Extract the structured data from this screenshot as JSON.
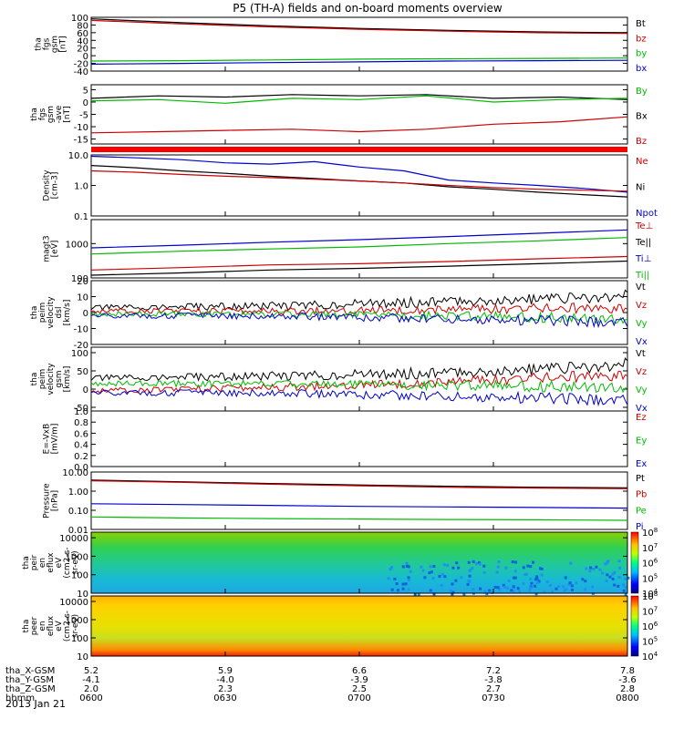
{
  "title": "P5 (TH-A) fields and on-board moments overview",
  "chart_data": {
    "type": "line",
    "title": "P5 (TH-A) fields and on-board moments overview",
    "date_label": "2013 Jan 21",
    "panels": [
      {
        "ylabel": [
          "tha",
          "fgs",
          "gsm",
          "[nT]"
        ],
        "ylim": [
          -40,
          100
        ],
        "yticks": [
          -40,
          -20,
          0,
          20,
          40,
          60,
          80,
          100
        ],
        "ytick_labels": [
          "-40",
          "-20",
          "0",
          "20",
          "40",
          "60",
          "80",
          "100"
        ],
        "legend": [
          {
            "label": "Bt",
            "color": "#000000"
          },
          {
            "label": "bz",
            "color": "#cc0000"
          },
          {
            "label": "by",
            "color": "#00bb00"
          },
          {
            "label": "bx",
            "color": "#0000cc"
          }
        ],
        "series": [
          {
            "name": "Bt",
            "color": "#000000",
            "x": [
              360,
              380,
              400,
              420,
              440,
              460,
              480
            ],
            "values": [
              96,
              86,
              78,
              71,
              66,
              62,
              60
            ]
          },
          {
            "name": "bz",
            "color": "#cc0000",
            "x": [
              360,
              380,
              400,
              420,
              440,
              460,
              480
            ],
            "values": [
              92,
              83,
              75,
              69,
              64,
              60,
              58
            ]
          },
          {
            "name": "by",
            "color": "#00bb00",
            "x": [
              360,
              380,
              400,
              420,
              440,
              460,
              480
            ],
            "values": [
              -14,
              -13,
              -11,
              -9,
              -8,
              -7,
              -6
            ]
          },
          {
            "name": "bx",
            "color": "#0000cc",
            "x": [
              360,
              380,
              400,
              420,
              440,
              460,
              480
            ],
            "values": [
              -22,
              -20,
              -18,
              -16,
              -14,
              -13,
              -12
            ]
          }
        ]
      },
      {
        "ylabel": [
          "tha",
          "fgs",
          "gsm",
          "-ave",
          "[nT]"
        ],
        "ylim": [
          -17,
          7
        ],
        "yticks": [
          -15,
          -10,
          -5,
          0,
          5
        ],
        "ytick_labels": [
          "-15",
          "-10",
          "-5",
          "0",
          "5"
        ],
        "legend": [
          {
            "label": "By",
            "color": "#00bb00"
          },
          {
            "label": "Bx",
            "color": "#000000"
          },
          {
            "label": "Bz",
            "color": "#cc0000"
          }
        ],
        "series": [
          {
            "name": "Bx",
            "color": "#000000",
            "x": [
              360,
              375,
              390,
              405,
              420,
              435,
              450,
              465,
              480
            ],
            "values": [
              1.5,
              2.5,
              2,
              3,
              2.5,
              3,
              1.5,
              2,
              1
            ]
          },
          {
            "name": "By",
            "color": "#00bb00",
            "x": [
              360,
              375,
              390,
              405,
              420,
              435,
              450,
              465,
              480
            ],
            "values": [
              0.5,
              1,
              -0.5,
              1.5,
              1,
              2.5,
              0,
              1,
              1.5
            ]
          },
          {
            "name": "Bz",
            "color": "#cc0000",
            "x": [
              360,
              375,
              390,
              405,
              420,
              435,
              450,
              465,
              480
            ],
            "values": [
              -12.5,
              -12,
              -11.5,
              -11,
              -12,
              -11,
              -9,
              -8,
              -6
            ]
          }
        ]
      },
      {
        "ylabel": [
          "Density",
          "[cm-3]"
        ],
        "log": true,
        "ylim": [
          0.1,
          10
        ],
        "yticks": [
          0.1,
          1,
          10
        ],
        "ytick_labels": [
          "0.1",
          "1.0",
          "10.0"
        ],
        "legend": [
          {
            "label": "Ne",
            "color": "#cc0000"
          },
          {
            "label": "Ni",
            "color": "#000000"
          },
          {
            "label": "Npot",
            "color": "#0000cc"
          }
        ],
        "series": [
          {
            "name": "Npot",
            "color": "#0000cc",
            "x": [
              360,
              370,
              380,
              390,
              400,
              410,
              420,
              430,
              440,
              450,
              460,
              470,
              480
            ],
            "values": [
              9,
              8,
              7,
              5.5,
              5,
              6,
              4,
              3,
              1.5,
              1.2,
              1,
              0.8,
              0.6
            ]
          },
          {
            "name": "Ni",
            "color": "#000000",
            "x": [
              360,
              370,
              380,
              390,
              400,
              410,
              420,
              430,
              440,
              450,
              460,
              470,
              480
            ],
            "values": [
              4.5,
              3.8,
              3,
              2.5,
              2,
              1.7,
              1.4,
              1.2,
              0.9,
              0.75,
              0.6,
              0.5,
              0.42
            ]
          },
          {
            "name": "Ne",
            "color": "#cc0000",
            "x": [
              360,
              370,
              380,
              390,
              400,
              410,
              420,
              430,
              440,
              450,
              460,
              470,
              480
            ],
            "values": [
              3,
              2.7,
              2.3,
              2,
              1.8,
              1.6,
              1.4,
              1.2,
              1,
              0.85,
              0.75,
              0.7,
              0.65
            ]
          }
        ]
      },
      {
        "ylabel": [
          "magt3",
          "[eV]"
        ],
        "log": true,
        "ylim": [
          100,
          5000
        ],
        "yticks": [
          100,
          1000
        ],
        "ytick_labels": [
          "100",
          "1000"
        ],
        "legend": [
          {
            "label": "Te⊥",
            "color": "#cc0000"
          },
          {
            "label": "Te||",
            "color": "#000000"
          },
          {
            "label": "Ti⊥",
            "color": "#0000cc"
          },
          {
            "label": "Ti||",
            "color": "#00bb00"
          }
        ],
        "series": [
          {
            "name": "Ti⊥",
            "color": "#0000cc",
            "x": [
              360,
              380,
              400,
              420,
              440,
              460,
              480
            ],
            "values": [
              750,
              900,
              1100,
              1300,
              1600,
              2000,
              2500
            ]
          },
          {
            "name": "Ti||",
            "color": "#00bb00",
            "x": [
              360,
              380,
              400,
              420,
              440,
              460,
              480
            ],
            "values": [
              500,
              600,
              700,
              800,
              1000,
              1200,
              1500
            ]
          },
          {
            "name": "Te⊥",
            "color": "#cc0000",
            "x": [
              360,
              380,
              400,
              420,
              440,
              460,
              480
            ],
            "values": [
              170,
              200,
              240,
              260,
              300,
              360,
              420
            ]
          },
          {
            "name": "Te||",
            "color": "#000000",
            "x": [
              360,
              380,
              400,
              420,
              440,
              460,
              480
            ],
            "values": [
              120,
              140,
              170,
              190,
              220,
              260,
              310
            ]
          }
        ]
      },
      {
        "ylabel": [
          "tha",
          "peim",
          "velocity",
          "dsl",
          "[km/s]"
        ],
        "ylim": [
          -20,
          20
        ],
        "yticks": [
          -20,
          -10,
          0,
          10,
          20
        ],
        "ytick_labels": [
          "-20",
          "-10",
          "0",
          "10",
          "20"
        ],
        "legend": [
          {
            "label": "Vt",
            "color": "#000000"
          },
          {
            "label": "Vz",
            "color": "#cc0000"
          },
          {
            "label": "Vy",
            "color": "#00bb00"
          },
          {
            "label": "Vx",
            "color": "#0000cc"
          }
        ],
        "series": [
          {
            "name": "Vt",
            "color": "#000000",
            "x": [
              360,
              400,
              440,
              480
            ],
            "values": [
              3,
              4,
              7,
              10
            ]
          },
          {
            "name": "Vz",
            "color": "#cc0000",
            "x": [
              360,
              400,
              440,
              480
            ],
            "values": [
              1,
              1,
              2,
              3
            ]
          },
          {
            "name": "Vy",
            "color": "#00bb00",
            "x": [
              360,
              400,
              440,
              480
            ],
            "values": [
              -1,
              -1,
              -2,
              -4
            ]
          },
          {
            "name": "Vx",
            "color": "#0000cc",
            "x": [
              360,
              400,
              440,
              480
            ],
            "values": [
              -2,
              -2,
              -4,
              -6
            ]
          }
        ]
      },
      {
        "ylabel": [
          "tha",
          "peim",
          "velocity",
          "gsm",
          "[km/s]"
        ],
        "ylim": [
          -60,
          115
        ],
        "yticks": [
          -50,
          0,
          50,
          100
        ],
        "ytick_labels": [
          "-50",
          "0",
          "50",
          "100"
        ],
        "legend": [
          {
            "label": "Vt",
            "color": "#000000"
          },
          {
            "label": "Vz",
            "color": "#cc0000"
          },
          {
            "label": "Vy",
            "color": "#00bb00"
          },
          {
            "label": "Vx",
            "color": "#0000cc"
          }
        ],
        "series": [
          {
            "name": "Vt",
            "color": "#000000",
            "x": [
              360,
              400,
              440,
              480
            ],
            "values": [
              30,
              35,
              45,
              65
            ]
          },
          {
            "name": "Vz",
            "color": "#cc0000",
            "x": [
              360,
              400,
              440,
              480
            ],
            "values": [
              -5,
              5,
              20,
              40
            ]
          },
          {
            "name": "Vy",
            "color": "#00bb00",
            "x": [
              360,
              400,
              440,
              480
            ],
            "values": [
              15,
              15,
              10,
              5
            ]
          },
          {
            "name": "Vx",
            "color": "#0000cc",
            "x": [
              360,
              400,
              440,
              480
            ],
            "values": [
              -10,
              -10,
              -20,
              -30
            ]
          }
        ]
      },
      {
        "ylabel": [
          "E=-VxB",
          "[mV/m]"
        ],
        "ylim": [
          0,
          1
        ],
        "yticks": [
          0,
          0.2,
          0.4,
          0.6,
          0.8,
          1
        ],
        "ytick_labels": [
          "0.0",
          "0.2",
          "0.4",
          "0.6",
          "0.8",
          "1.0"
        ],
        "legend": [
          {
            "label": "Ez",
            "color": "#cc0000"
          },
          {
            "label": "Ey",
            "color": "#00bb00"
          },
          {
            "label": "Ex",
            "color": "#0000cc"
          }
        ],
        "series": []
      },
      {
        "ylabel": [
          "Pressure",
          "[nPa]"
        ],
        "log": true,
        "ylim": [
          0.01,
          10
        ],
        "yticks": [
          0.01,
          0.1,
          1,
          10
        ],
        "ytick_labels": [
          "0.01",
          "0.10",
          "1.00",
          "10.00"
        ],
        "legend": [
          {
            "label": "Pt",
            "color": "#000000"
          },
          {
            "label": "Pb",
            "color": "#cc0000"
          },
          {
            "label": "Pe",
            "color": "#00bb00"
          },
          {
            "label": "Pi",
            "color": "#0000cc"
          }
        ],
        "series": [
          {
            "name": "Pt",
            "color": "#000000",
            "x": [
              360,
              380,
              400,
              420,
              440,
              460,
              480
            ],
            "values": [
              3.8,
              3.1,
              2.5,
              2.1,
              1.8,
              1.6,
              1.5
            ]
          },
          {
            "name": "Pb",
            "color": "#cc0000",
            "x": [
              360,
              380,
              400,
              420,
              440,
              460,
              480
            ],
            "values": [
              3.5,
              2.9,
              2.3,
              1.9,
              1.6,
              1.45,
              1.35
            ]
          },
          {
            "name": "Pi",
            "color": "#0000cc",
            "x": [
              360,
              380,
              400,
              420,
              440,
              460,
              480
            ],
            "values": [
              0.22,
              0.2,
              0.18,
              0.16,
              0.15,
              0.14,
              0.13
            ]
          },
          {
            "name": "Pe",
            "color": "#00bb00",
            "x": [
              360,
              380,
              400,
              420,
              440,
              460,
              480
            ],
            "values": [
              0.045,
              0.04,
              0.037,
              0.035,
              0.033,
              0.032,
              0.03
            ]
          }
        ]
      },
      {
        "type": "heatmap",
        "ylabel": [
          "tha",
          "peir",
          "en",
          "eflux",
          "eV",
          "(cm2-s-",
          "sr-eV)"
        ],
        "log": true,
        "ylim": [
          10,
          20000
        ],
        "yticks": [
          10,
          100,
          1000,
          10000
        ],
        "ytick_labels": [
          "10",
          "100",
          "1000",
          "10000"
        ],
        "colorbar": {
          "min_exp": 4,
          "max_exp": 8,
          "labels": [
            "10",
            "10",
            "10",
            "10",
            "10"
          ],
          "exponents": [
            "4",
            "5",
            "6",
            "7",
            "8"
          ]
        }
      },
      {
        "type": "heatmap",
        "ylabel": [
          "tha",
          "peer",
          "en",
          "eflux",
          "eV",
          "(cm2-s-",
          "sr-eV)"
        ],
        "log": true,
        "ylim": [
          10,
          20000
        ],
        "yticks": [
          10,
          100,
          1000,
          10000
        ],
        "ytick_labels": [
          "10",
          "100",
          "1000",
          "10000"
        ],
        "colorbar": {
          "min_exp": 4,
          "max_exp": 8,
          "labels": [
            "10",
            "10",
            "10",
            "10",
            "10"
          ],
          "exponents": [
            "4",
            "5",
            "6",
            "7",
            "8"
          ]
        }
      }
    ],
    "x_axis": {
      "xlim": [
        360,
        480
      ],
      "ticks": [
        360,
        390,
        420,
        450,
        480
      ],
      "rows": [
        {
          "label": "tha_X-GSM",
          "values": [
            "5.2",
            "5.9",
            "6.6",
            "7.2",
            "7.8"
          ]
        },
        {
          "label": "tha_Y-GSM",
          "values": [
            "-4.1",
            "-4.0",
            "-3.9",
            "-3.8",
            "-3.6"
          ]
        },
        {
          "label": "tha_Z-GSM",
          "values": [
            "2.0",
            "2.3",
            "2.5",
            "2.7",
            "2.8"
          ]
        },
        {
          "label": "hhmm",
          "values": [
            "0600",
            "0630",
            "0700",
            "0730",
            "0800"
          ]
        }
      ]
    }
  }
}
